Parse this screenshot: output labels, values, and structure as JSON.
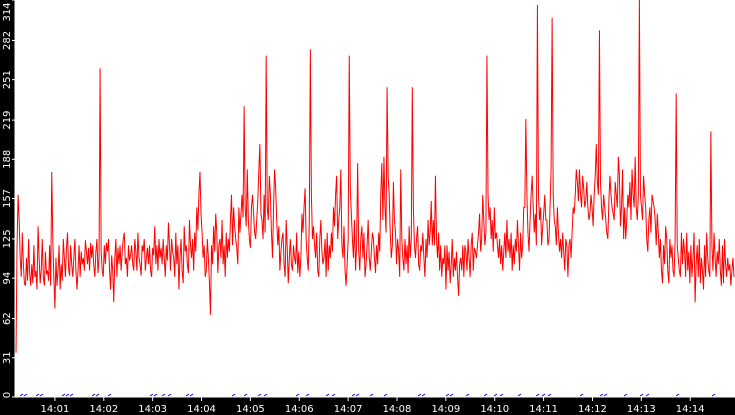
{
  "chart_data": {
    "type": "line",
    "title": "",
    "xlabel": "",
    "ylabel": "",
    "ylim": [
      0,
      314
    ],
    "yticks": [
      0,
      31,
      62,
      94,
      125,
      157,
      188,
      219,
      251,
      282,
      314
    ],
    "xlim": [
      "14:00:11",
      "14:14:55"
    ],
    "xticks": [
      "14:01",
      "14:02",
      "14:03",
      "14:04",
      "14:05",
      "14:06",
      "14:07",
      "14:08",
      "14:09",
      "14:10",
      "14:11",
      "14:12",
      "14:13",
      "14:14"
    ],
    "grid": false,
    "colors": {
      "background": "#ffffff",
      "frame": "#000000",
      "series": "#ff0000",
      "secondary_series": "#0000ff"
    },
    "series": [
      {
        "values": [
          35,
          120,
          160,
          140,
          110,
          95,
          130,
          105,
          90,
          88,
          110,
          92,
          125,
          98,
          88,
          105,
          90,
          120,
          95,
          100,
          85,
          135,
          110,
          90,
          100,
          125,
          95,
          88,
          115,
          97,
          100,
          92,
          120,
          88,
          178,
          125,
          95,
          70,
          110,
          88,
          100,
          120,
          85,
          105,
          92,
          125,
          110,
          95,
          118,
          130,
          102,
          96,
          120,
          105,
          95,
          110,
          125,
          100,
          85,
          100,
          120,
          95,
          115,
          105,
          110,
          100,
          124,
          115,
          105,
          118,
          100,
          122,
          110,
          120,
          104,
          95,
          115,
          125,
          98,
          110,
          260,
          115,
          100,
          95,
          120,
          105,
          122,
          115,
          125,
          100,
          85,
          112,
          100,
          75,
          110,
          125,
          95,
          118,
          105,
          120,
          100,
          115,
          125,
          130,
          105,
          110,
          95,
          120,
          108,
          112,
          120,
          105,
          100,
          125,
          115,
          100,
          130,
          110,
          105,
          96,
          120,
          115,
          125,
          100,
          110,
          118,
          105,
          120,
          100,
          95,
          118,
          112,
          135,
          105,
          120,
          100,
          125,
          110,
          118,
          105,
          125,
          110,
          95,
          120,
          108,
          138,
          120,
          100,
          125,
          115,
          110,
          95,
          130,
          105,
          120,
          85,
          110,
          125,
          100,
          90,
          135,
          115,
          120,
          105,
          98,
          140,
          120,
          110,
          125,
          100,
          130,
          115,
          150,
          132,
          160,
          178,
          145,
          130,
          110,
          120,
          95,
          100,
          125,
          110,
          90,
          65,
          120,
          105,
          135,
          115,
          145,
          130,
          98,
          120,
          125,
          110,
          140,
          105,
          120,
          95,
          130,
          110,
          125,
          115,
          140,
          160,
          120,
          150,
          135,
          125,
          118,
          105,
          150,
          130,
          145,
          160,
          142,
          230,
          150,
          135,
          180,
          140,
          125,
          118,
          150,
          160,
          145,
          130,
          125,
          140,
          155,
          180,
          200,
          145,
          140,
          125,
          160,
          130,
          270,
          150,
          140,
          175,
          160,
          130,
          110,
          150,
          180,
          165,
          140,
          120,
          135,
          100,
          115,
          125,
          130,
          105,
          95,
          140,
          118,
          90,
          110,
          125,
          105,
          100,
          120,
          110,
          105,
          130,
          98,
          115,
          95,
          110,
          145,
          130,
          150,
          165,
          125,
          110,
          100,
          140,
          275,
          160,
          125,
          135,
          120,
          110,
          130,
          100,
          95,
          125,
          140,
          115,
          105,
          110,
          125,
          95,
          130,
          100,
          120,
          110,
          130,
          115,
          150,
          135,
          160,
          175,
          125,
          140,
          150,
          180,
          120,
          110,
          135,
          100,
          88,
          105,
          125,
          270,
          165,
          145,
          125,
          110,
          140,
          100,
          120,
          185,
          115,
          100,
          125,
          135,
          110,
          130,
          95,
          105,
          120,
          140,
          110,
          100,
          115,
          130,
          125,
          110,
          98,
          120,
          105,
          130,
          115,
          160,
          185,
          140,
          190,
          150,
          130,
          245,
          175,
          160,
          130,
          110,
          120,
          170,
          140,
          130,
          105,
          125,
          115,
          95,
          180,
          125,
          110,
          100,
          125,
          105,
          120,
          98,
          135,
          110,
          125,
          245,
          150,
          120,
          110,
          125,
          135,
          105,
          100,
          120,
          115,
          130,
          110,
          95,
          125,
          110,
          140,
          120,
          130,
          155,
          120,
          140,
          120,
          175,
          125,
          110,
          130,
          100,
          120,
          95,
          110,
          105,
          120,
          85,
          120,
          100,
          115,
          90,
          105,
          125,
          95,
          110,
          100,
          115,
          95,
          80,
          105,
          110,
          100,
          120,
          95,
          120,
          115,
          100,
          125,
          110,
          95,
          120,
          130,
          100,
          118,
          115,
          110,
          120,
          130,
          145,
          115,
          125,
          160,
          140,
          120,
          130,
          270,
          160,
          140,
          150,
          125,
          140,
          115,
          150,
          125,
          130,
          120,
          110,
          125,
          105,
          120,
          100,
          115,
          130,
          110,
          140,
          115,
          125,
          110,
          130,
          100,
          120,
          105,
          125,
          115,
          140,
          120,
          100,
          130,
          110,
          120,
          150,
          150,
          220,
          160,
          130,
          115,
          140,
          160,
          175,
          150,
          130,
          145,
          120,
          310,
          160,
          140,
          150,
          120,
          135,
          145,
          160,
          140,
          140,
          120,
          125,
          150,
          180,
          300,
          160,
          140,
          135,
          120,
          150,
          130,
          115,
          125,
          110,
          130,
          115,
          100,
          125,
          120,
          95,
          120,
          125,
          110,
          130,
          150,
          145,
          160,
          180,
          170,
          155,
          180,
          160,
          150,
          175,
          165,
          150,
          155,
          170,
          150,
          140,
          145,
          160,
          150,
          135,
          160,
          175,
          200,
          170,
          160,
          290,
          170,
          150,
          140,
          160,
          150,
          140,
          130,
          125,
          155,
          175,
          160,
          150,
          145,
          140,
          170,
          160,
          150,
          190,
          175,
          135,
          150,
          180,
          125,
          150,
          125,
          140,
          160,
          150,
          170,
          140,
          180,
          160,
          150,
          190,
          150,
          140,
          160,
          315,
          160,
          150,
          140,
          175,
          160,
          150,
          125,
          115,
          140,
          150,
          130,
          160,
          155,
          150,
          140,
          120,
          145,
          130,
          110,
          125,
          100,
          90,
          120,
          105,
          135,
          125,
          100,
          90,
          125,
          110,
          120,
          100,
          95,
          125,
          240,
          120,
          110,
          100,
          95,
          130,
          105,
          125,
          115,
          95,
          130,
          100,
          115,
          90,
          120,
          95,
          110,
          130,
          75,
          105,
          120,
          95,
          125,
          90,
          110,
          100,
          85,
          120,
          95,
          130,
          110,
          100,
          95,
          210,
          120,
          100,
          130,
          110,
          95,
          115,
          105,
          125,
          100,
          88,
          120,
          90,
          125,
          105,
          95,
          110,
          100,
          105,
          88,
          100,
          110,
          95
        ]
      }
    ]
  }
}
